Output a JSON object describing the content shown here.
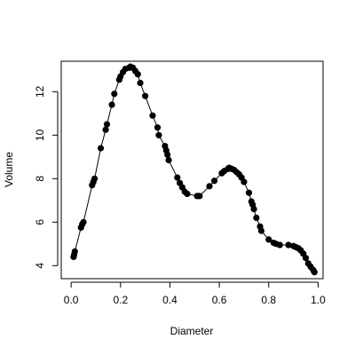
{
  "chart_data": {
    "type": "scatter",
    "title": "",
    "xlabel": "Diameter",
    "ylabel": "Volume",
    "xlim": [
      -0.04,
      1.02
    ],
    "ylim": [
      3.4,
      13.4
    ],
    "xticks": [
      0.0,
      0.2,
      0.4,
      0.6,
      0.8,
      1.0
    ],
    "yticks": [
      4,
      6,
      8,
      10,
      12
    ],
    "xtick_labels": [
      "0.0",
      "0.2",
      "0.4",
      "0.6",
      "0.8",
      "1.0"
    ],
    "ytick_labels": [
      "4",
      "6",
      "8",
      "10",
      "12"
    ],
    "grid": false,
    "legend": false,
    "marker": "filled-circle",
    "line": "thin connecting line",
    "points": [
      [
        0.01,
        4.4
      ],
      [
        0.012,
        4.5
      ],
      [
        0.015,
        4.65
      ],
      [
        0.04,
        5.75
      ],
      [
        0.045,
        5.9
      ],
      [
        0.05,
        6.0
      ],
      [
        0.085,
        7.7
      ],
      [
        0.09,
        7.85
      ],
      [
        0.095,
        8.0
      ],
      [
        0.12,
        9.4
      ],
      [
        0.14,
        10.25
      ],
      [
        0.145,
        10.5
      ],
      [
        0.165,
        11.4
      ],
      [
        0.175,
        11.9
      ],
      [
        0.195,
        12.55
      ],
      [
        0.2,
        12.7
      ],
      [
        0.21,
        12.9
      ],
      [
        0.22,
        13.05
      ],
      [
        0.235,
        13.1
      ],
      [
        0.24,
        13.15
      ],
      [
        0.25,
        13.1
      ],
      [
        0.26,
        12.95
      ],
      [
        0.27,
        12.8
      ],
      [
        0.28,
        12.4
      ],
      [
        0.3,
        11.8
      ],
      [
        0.33,
        10.9
      ],
      [
        0.35,
        10.35
      ],
      [
        0.355,
        10.0
      ],
      [
        0.38,
        9.5
      ],
      [
        0.385,
        9.3
      ],
      [
        0.39,
        9.1
      ],
      [
        0.395,
        8.85
      ],
      [
        0.43,
        8.05
      ],
      [
        0.44,
        7.8
      ],
      [
        0.45,
        7.6
      ],
      [
        0.46,
        7.4
      ],
      [
        0.47,
        7.3
      ],
      [
        0.51,
        7.2
      ],
      [
        0.52,
        7.2
      ],
      [
        0.56,
        7.65
      ],
      [
        0.58,
        7.9
      ],
      [
        0.61,
        8.25
      ],
      [
        0.62,
        8.35
      ],
      [
        0.635,
        8.45
      ],
      [
        0.64,
        8.5
      ],
      [
        0.65,
        8.45
      ],
      [
        0.66,
        8.4
      ],
      [
        0.67,
        8.3
      ],
      [
        0.68,
        8.2
      ],
      [
        0.69,
        8.05
      ],
      [
        0.7,
        7.85
      ],
      [
        0.72,
        7.35
      ],
      [
        0.73,
        6.95
      ],
      [
        0.735,
        6.8
      ],
      [
        0.74,
        6.6
      ],
      [
        0.75,
        6.2
      ],
      [
        0.765,
        5.8
      ],
      [
        0.77,
        5.6
      ],
      [
        0.8,
        5.2
      ],
      [
        0.82,
        5.05
      ],
      [
        0.83,
        5.0
      ],
      [
        0.845,
        4.95
      ],
      [
        0.88,
        4.95
      ],
      [
        0.9,
        4.9
      ],
      [
        0.91,
        4.85
      ],
      [
        0.92,
        4.8
      ],
      [
        0.93,
        4.7
      ],
      [
        0.94,
        4.55
      ],
      [
        0.95,
        4.35
      ],
      [
        0.96,
        4.1
      ],
      [
        0.97,
        3.95
      ],
      [
        0.98,
        3.8
      ],
      [
        0.985,
        3.7
      ]
    ]
  }
}
